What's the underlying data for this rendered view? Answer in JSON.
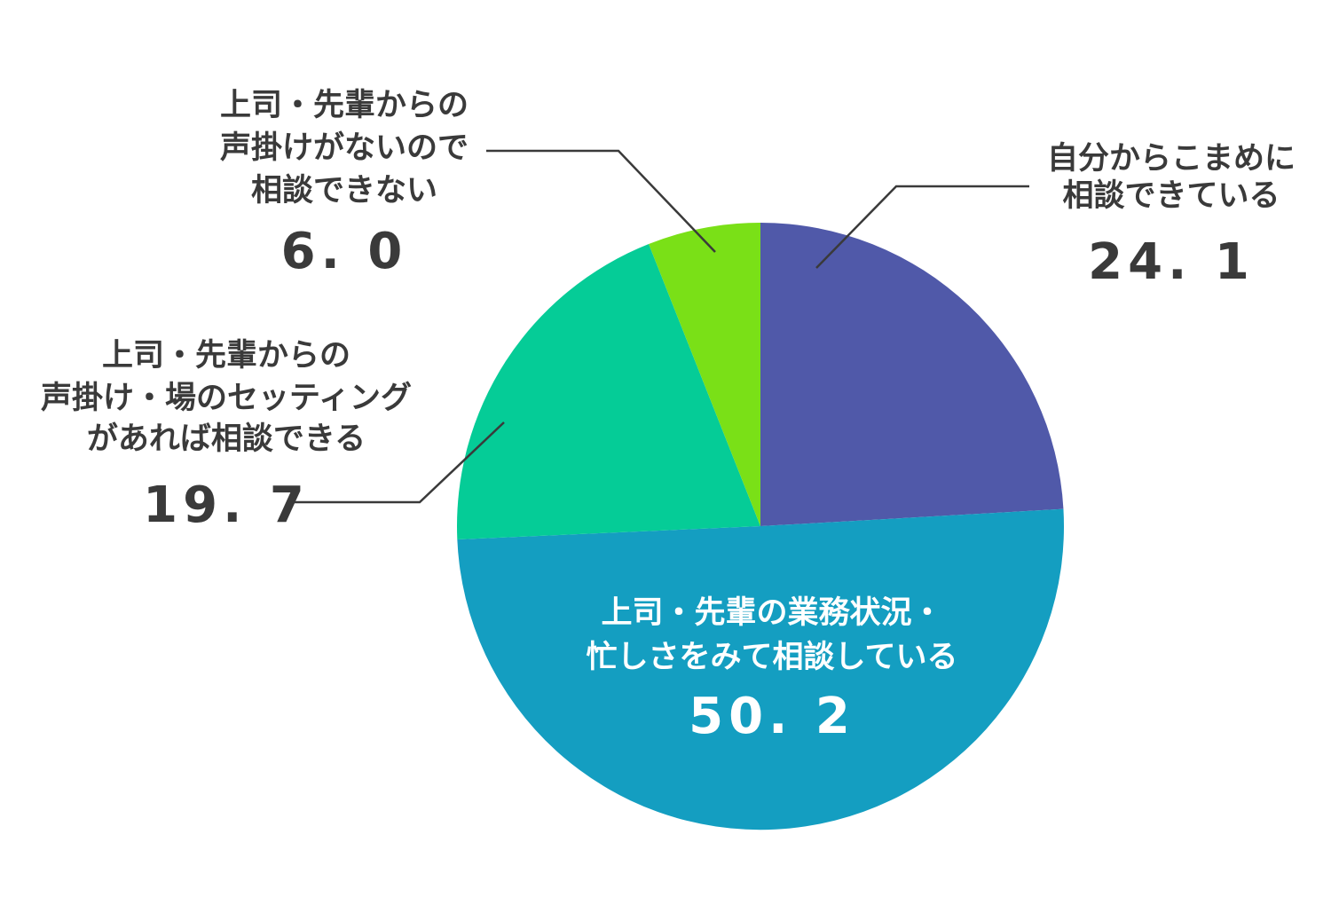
{
  "chart_data": {
    "type": "pie",
    "title": "",
    "start_angle_deg": 0,
    "direction": "clockwise",
    "slices": [
      {
        "label_lines": [
          "自分からこまめに",
          "相談できている"
        ],
        "value": 24.1,
        "value_text": "24. 1",
        "color": "#5059a9"
      },
      {
        "label_lines": [
          "上司・先輩の業務状況・",
          "忙しさをみて相談している"
        ],
        "value": 50.2,
        "value_text": "50. 2",
        "color": "#149ec1"
      },
      {
        "label_lines": [
          "上司・先輩からの",
          "声掛け・場のセッティング",
          "があれば相談できる"
        ],
        "value": 19.7,
        "value_text": "19. 7",
        "color": "#05cc97"
      },
      {
        "label_lines": [
          "上司・先輩からの",
          "声掛けがないので",
          "相談できない"
        ],
        "value": 6.0,
        "value_text": "6. 0",
        "color": "#7ae017"
      }
    ]
  }
}
